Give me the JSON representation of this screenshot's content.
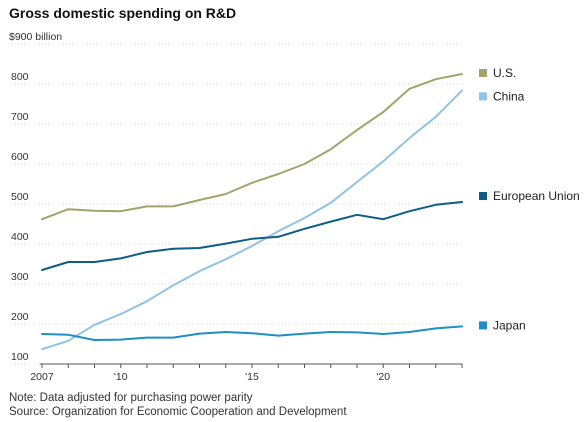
{
  "title": "Gross domestic spending on R&D",
  "notes": {
    "note": "Note: Data adjusted for purchasing power parity",
    "source": "Source: Organization for Economic Cooperation and Development"
  },
  "chart_data": {
    "type": "line",
    "title": "Gross domestic spending on R&D",
    "unit_label": "$900 billion",
    "ylim": [
      100,
      900
    ],
    "xlim": [
      2007,
      2023
    ],
    "y_ticks": [
      100,
      200,
      300,
      400,
      500,
      600,
      700,
      800
    ],
    "y_tick_labels": [
      "100",
      "200",
      "300",
      "400",
      "500",
      "600",
      "700",
      "800"
    ],
    "x_ticks": [
      2007,
      2010,
      2015,
      2020
    ],
    "x_tick_labels": [
      "2007",
      "'10",
      "'15",
      "'20"
    ],
    "grid": "horizontal",
    "legend": "right, at line ends",
    "x": [
      2007,
      2008,
      2009,
      2010,
      2011,
      2012,
      2013,
      2014,
      2015,
      2016,
      2017,
      2018,
      2019,
      2020,
      2021,
      2022,
      2023
    ],
    "series": [
      {
        "name": "U.S.",
        "color": "#a5a36b",
        "values": [
          462,
          487,
          483,
          482,
          494,
          494,
          510,
          525,
          553,
          575,
          600,
          637,
          685,
          730,
          788,
          812,
          825
        ]
      },
      {
        "name": "China",
        "color": "#8fc3e6",
        "values": [
          137,
          158,
          198,
          225,
          257,
          297,
          332,
          362,
          395,
          432,
          465,
          503,
          555,
          607,
          665,
          718,
          784
        ]
      },
      {
        "name": "European Union",
        "color": "#0e5d86",
        "values": [
          335,
          355,
          355,
          364,
          380,
          388,
          390,
          401,
          413,
          418,
          438,
          456,
          473,
          462,
          482,
          498,
          505
        ]
      },
      {
        "name": "Japan",
        "color": "#1d8fc4",
        "values": [
          175,
          173,
          160,
          161,
          166,
          166,
          176,
          180,
          177,
          171,
          176,
          180,
          179,
          175,
          180,
          189,
          194
        ]
      }
    ]
  }
}
